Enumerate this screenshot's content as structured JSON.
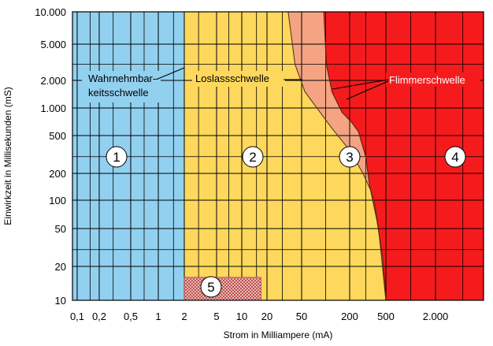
{
  "chart_data": {
    "type": "area",
    "title": "",
    "xlabel": "Strom in Milliampere (mA)",
    "ylabel": "Einwirkzeit in Millisekunden (mS)",
    "x_scale": "log",
    "y_scale": "log",
    "xlim": [
      0.1,
      10000
    ],
    "ylim": [
      10,
      10000
    ],
    "x_ticks": [
      {
        "value": 0.1,
        "label": "0,1"
      },
      {
        "value": 0.2,
        "label": "0,2"
      },
      {
        "value": 0.5,
        "label": "0,5"
      },
      {
        "value": 1,
        "label": "1"
      },
      {
        "value": 2,
        "label": "2"
      },
      {
        "value": 5,
        "label": "5"
      },
      {
        "value": 10,
        "label": "10"
      },
      {
        "value": 20,
        "label": "20"
      },
      {
        "value": 50,
        "label": "50"
      },
      {
        "value": 200,
        "label": "200"
      },
      {
        "value": 500,
        "label": "500"
      },
      {
        "value": 2000,
        "label": "2.000"
      }
    ],
    "y_ticks": [
      {
        "value": 10,
        "label": "10"
      },
      {
        "value": 20,
        "label": "20"
      },
      {
        "value": 50,
        "label": "50"
      },
      {
        "value": 100,
        "label": "100"
      },
      {
        "value": 200,
        "label": "200"
      },
      {
        "value": 500,
        "label": "500"
      },
      {
        "value": 1000,
        "label": "1.000"
      },
      {
        "value": 2000,
        "label": "2.000"
      },
      {
        "value": 5000,
        "label": "5.000"
      },
      {
        "value": 10000,
        "label": "10.000"
      }
    ],
    "grid": true,
    "zones": [
      {
        "id": "1",
        "label": "1",
        "color": "#92d0f0",
        "at": [
          0.5,
          200
        ]
      },
      {
        "id": "2",
        "label": "2",
        "color": "#fdd85c",
        "at": [
          20,
          200
        ]
      },
      {
        "id": "3",
        "label": "3",
        "color": "#f4a383",
        "at": [
          200,
          200
        ]
      },
      {
        "id": "4",
        "label": "4",
        "color": "#f51b1d",
        "at": [
          3000,
          200
        ]
      },
      {
        "id": "5",
        "label": "5",
        "color": "#c0504d",
        "at": [
          5,
          13
        ],
        "pattern": "hatched",
        "x_range": [
          2,
          17
        ],
        "y_range": [
          10,
          16
        ]
      }
    ],
    "boundaries": [
      {
        "name": "Wahrnehmbarkeitsschwelle",
        "points": [
          [
            2,
            10
          ],
          [
            2,
            10000
          ]
        ]
      },
      {
        "name": "Loslassschwelle",
        "points": [
          [
            35,
            10000
          ],
          [
            42,
            3000
          ],
          [
            55,
            1500
          ],
          [
            85,
            900
          ],
          [
            120,
            600
          ],
          [
            200,
            350
          ],
          [
            280,
            200
          ],
          [
            340,
            130
          ],
          [
            380,
            90
          ],
          [
            420,
            45
          ],
          [
            500,
            10
          ]
        ]
      },
      {
        "name": "Flimmerschwelle",
        "points": [
          [
            95,
            10000
          ],
          [
            102,
            3000
          ],
          [
            120,
            1500
          ],
          [
            160,
            900
          ],
          [
            210,
            700
          ],
          [
            250,
            550
          ],
          [
            300,
            300
          ],
          [
            330,
            150
          ],
          [
            400,
            60
          ],
          [
            460,
            25
          ],
          [
            500,
            10
          ]
        ]
      }
    ],
    "annotations": [
      {
        "text_lines": [
          "Wahrnehmbar-",
          "keitsschwelle"
        ],
        "color": "#000000",
        "background": "#92d0f0",
        "target": [
          2,
          2000
        ]
      },
      {
        "text_lines": [
          "Loslassschwelle"
        ],
        "color": "#000000",
        "background": "#fdd85c",
        "target": [
          55,
          2000
        ]
      },
      {
        "text_lines": [
          "Flimmerschwelle"
        ],
        "color": "#ffffff",
        "background": "#f51b1d",
        "target": [
          105,
          1350
        ]
      }
    ]
  }
}
